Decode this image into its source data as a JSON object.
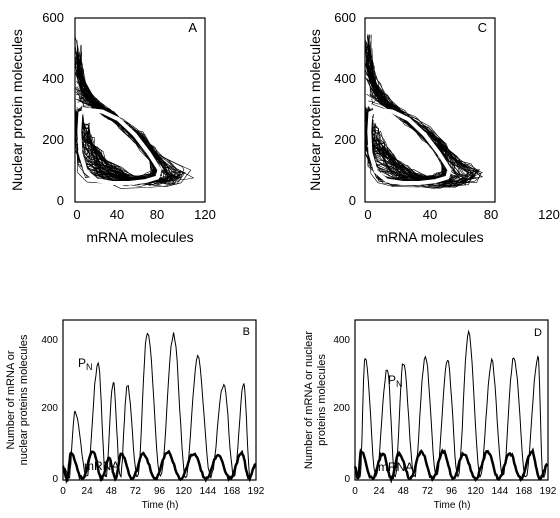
{
  "chart_data": [
    {
      "panel": "A",
      "type": "line",
      "xlabel": "mRNA  molecules",
      "ylabel": "Nuclear protein molecules",
      "xlim": [
        0,
        120
      ],
      "ylim": [
        0,
        600
      ],
      "xticks": [
        "0",
        "40",
        "80",
        "120"
      ],
      "yticks": [
        "0",
        "200",
        "400",
        "600"
      ],
      "grid": false,
      "series": [
        {
          "role": "deterministic-limit-cycle",
          "color": "#ffffff",
          "points": [
            [
              5,
              290
            ],
            [
              12,
              300
            ],
            [
              25,
              295
            ],
            [
              40,
              270
            ],
            [
              55,
              220
            ],
            [
              68,
              160
            ],
            [
              78,
              105
            ],
            [
              76,
              80
            ],
            [
              65,
              68
            ],
            [
              50,
              62
            ],
            [
              35,
              62
            ],
            [
              20,
              70
            ],
            [
              10,
              100
            ],
            [
              5,
              160
            ],
            [
              4,
              230
            ],
            [
              5,
              290
            ]
          ]
        },
        {
          "role": "stochastic-trajectories",
          "color": "#000000",
          "points": [
            [
              2,
              540
            ],
            [
              3,
              450
            ],
            [
              6,
              380
            ],
            [
              12,
              330
            ],
            [
              25,
              300
            ],
            [
              40,
              270
            ],
            [
              55,
              240
            ],
            [
              70,
              190
            ],
            [
              85,
              140
            ],
            [
              100,
              110
            ],
            [
              110,
              95
            ],
            [
              105,
              70
            ],
            [
              90,
              55
            ],
            [
              70,
              45
            ],
            [
              50,
              40
            ],
            [
              30,
              42
            ],
            [
              15,
              55
            ],
            [
              6,
              90
            ],
            [
              3,
              150
            ],
            [
              2,
              230
            ],
            [
              2,
              300
            ]
          ]
        }
      ]
    },
    {
      "panel": "C",
      "type": "line",
      "xlabel": "mRNA  molecules",
      "ylabel": "Nuclear protein molecules",
      "xlim": [
        0,
        120
      ],
      "ylim": [
        0,
        600
      ],
      "xticks": [
        "0",
        "40",
        "80",
        "120"
      ],
      "yticks": [
        "0",
        "200",
        "400",
        "600"
      ],
      "grid": false,
      "series": [
        {
          "role": "deterministic-limit-cycle",
          "color": "#ffffff",
          "points": [
            [
              5,
              290
            ],
            [
              12,
              300
            ],
            [
              25,
              295
            ],
            [
              40,
              270
            ],
            [
              55,
              220
            ],
            [
              68,
              160
            ],
            [
              78,
              105
            ],
            [
              76,
              80
            ],
            [
              65,
              68
            ],
            [
              50,
              62
            ],
            [
              35,
              62
            ],
            [
              20,
              70
            ],
            [
              10,
              100
            ],
            [
              5,
              160
            ],
            [
              4,
              230
            ],
            [
              5,
              290
            ]
          ]
        },
        {
          "role": "stochastic-trajectories",
          "color": "#000000",
          "points": [
            [
              2,
              560
            ],
            [
              3,
              470
            ],
            [
              6,
              400
            ],
            [
              12,
              340
            ],
            [
              25,
              310
            ],
            [
              40,
              280
            ],
            [
              55,
              250
            ],
            [
              70,
              200
            ],
            [
              85,
              150
            ],
            [
              100,
              115
            ],
            [
              112,
              95
            ],
            [
              105,
              70
            ],
            [
              90,
              55
            ],
            [
              70,
              45
            ],
            [
              50,
              40
            ],
            [
              30,
              42
            ],
            [
              15,
              55
            ],
            [
              6,
              90
            ],
            [
              3,
              150
            ],
            [
              2,
              230
            ],
            [
              2,
              300
            ]
          ]
        }
      ]
    },
    {
      "panel": "B",
      "type": "line",
      "xlabel": "Time  (h)",
      "ylabel": "Number of mRNA or nuclear proteins molecules",
      "xlim": [
        0,
        192
      ],
      "ylim": [
        0,
        450
      ],
      "xticks": [
        "0",
        "24",
        "48",
        "72",
        "96",
        "120",
        "144",
        "168",
        "192"
      ],
      "yticks": [
        "0",
        "200",
        "400"
      ],
      "grid": false,
      "annotations": [
        "P",
        "N",
        "mRNA"
      ],
      "series": [
        {
          "role": "nuclear-protein",
          "peaks_x": [
            12,
            35,
            50,
            64,
            84,
            110,
            134,
            160,
            180
          ],
          "peaks_y": [
            195,
            330,
            275,
            265,
            415,
            410,
            345,
            270,
            270
          ]
        },
        {
          "role": "mRNA",
          "peaks_x": [
            8,
            30,
            46,
            58,
            80,
            104,
            130,
            154,
            178
          ],
          "peaks_y": [
            75,
            80,
            60,
            75,
            75,
            80,
            75,
            70,
            75
          ]
        }
      ]
    },
    {
      "panel": "D",
      "type": "line",
      "xlabel": "Time  (h)",
      "ylabel": "Number of mRNA or nuclear proteins molecules",
      "xlim": [
        0,
        192
      ],
      "ylim": [
        0,
        450
      ],
      "xticks": [
        "0",
        "24",
        "48",
        "72",
        "96",
        "120",
        "144",
        "168",
        "192"
      ],
      "yticks": [
        "0",
        "200",
        "400"
      ],
      "grid": false,
      "annotations": [
        "P",
        "N",
        "mRNA"
      ],
      "series": [
        {
          "role": "nuclear-protein",
          "peaks_x": [
            10,
            32,
            48,
            70,
            92,
            113,
            136,
            158,
            182
          ],
          "peaks_y": [
            345,
            310,
            330,
            345,
            340,
            415,
            335,
            345,
            345
          ]
        },
        {
          "role": "mRNA",
          "peaks_x": [
            6,
            28,
            44,
            66,
            88,
            108,
            132,
            154,
            176
          ],
          "peaks_y": [
            80,
            75,
            75,
            80,
            80,
            75,
            80,
            75,
            80
          ]
        }
      ]
    }
  ],
  "panel_labels": {
    "A": "A",
    "B": "B",
    "C": "C",
    "D": "D"
  },
  "text": {
    "pn_main": "P",
    "pn_sub": "N",
    "mrna": "mRNA",
    "ylabel_phase": "Nuclear protein molecules",
    "xlabel_phase": "mRNA  molecules",
    "ylabel_time_B_1": "Number of mRNA or",
    "ylabel_time_B_2": "nuclear proteins molecules",
    "ylabel_time_D_1": "Number of mRNA or nuclear",
    "ylabel_time_D_2": "proteins  molecules",
    "xlabel_time": "Time  (h)"
  }
}
